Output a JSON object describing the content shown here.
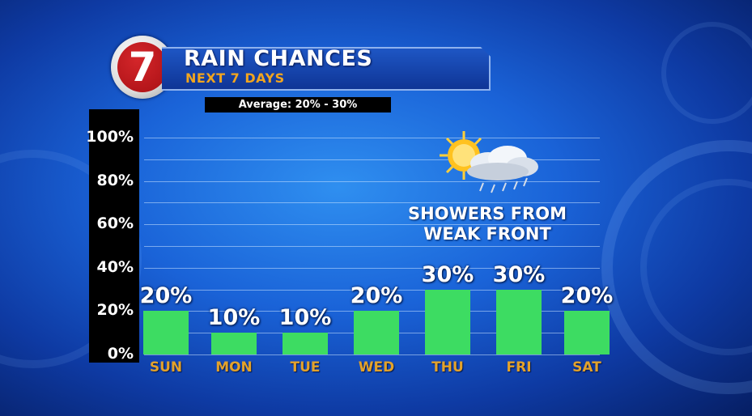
{
  "header": {
    "logo_text": "7",
    "title": "RAIN CHANCES",
    "subtitle": "NEXT 7 DAYS",
    "average_note": "Average: 20% - 30%"
  },
  "annotation": {
    "line1": "SHOWERS FROM",
    "line2": "WEAK FRONT",
    "icon": "sun-cloud-rain-icon"
  },
  "colors": {
    "bar": "#3ddc62",
    "category_label": "#e3a22b",
    "subtitle": "#f2a51e"
  },
  "chart_data": {
    "type": "bar",
    "title": "RAIN CHANCES",
    "categories": [
      "SUN",
      "MON",
      "TUE",
      "WED",
      "THU",
      "FRI",
      "SAT"
    ],
    "values": [
      20,
      10,
      10,
      20,
      30,
      30,
      20
    ],
    "value_labels": [
      "20%",
      "10%",
      "10%",
      "20%",
      "30%",
      "30%",
      "20%"
    ],
    "y_ticks": [
      "0%",
      "20%",
      "40%",
      "60%",
      "80%",
      "100%"
    ],
    "ylim": [
      0,
      100
    ],
    "grid": true,
    "xlabel": "",
    "ylabel": ""
  }
}
